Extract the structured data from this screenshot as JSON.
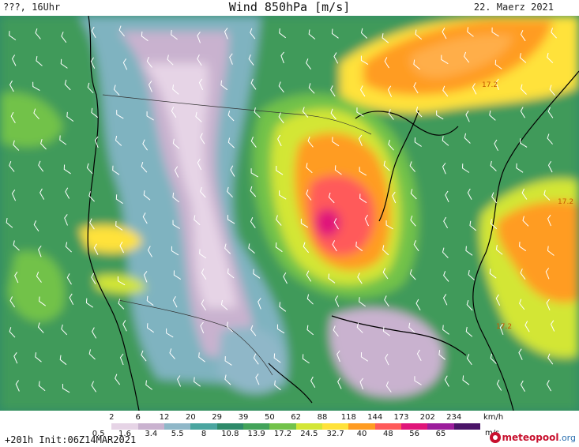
{
  "header": {
    "left": "???, 16Uhr",
    "title": "Wind 850hPa [m/s]",
    "date": "22. Maerz 2021"
  },
  "map": {
    "contour_labels": [
      "17.2",
      "17.2",
      "17.2"
    ]
  },
  "legend": {
    "kmh_ticks": [
      "2",
      "6",
      "12",
      "20",
      "29",
      "39",
      "50",
      "62",
      "88",
      "118",
      "144",
      "173",
      "202",
      "234"
    ],
    "kmh_unit": "km/h",
    "ms_ticks": [
      "0.5",
      "1.6",
      "3.4",
      "5.5",
      "8",
      "10.8",
      "13.9",
      "17.2",
      "24.5",
      "32.7",
      "40",
      "48",
      "56",
      "65"
    ],
    "ms_unit": "m/s",
    "colors": [
      "#ffffff",
      "#e6d4e6",
      "#c9b2cf",
      "#8fb7c8",
      "#4aa5a0",
      "#2e8a6a",
      "#43a35a",
      "#72c24a",
      "#d3e636",
      "#ffe23a",
      "#ff9c22",
      "#ff5a5a",
      "#e0157a",
      "#9c1d9c",
      "#4a1468"
    ]
  },
  "footer": {
    "init": "+201h Init:06Z14MAR2021",
    "brand_main": "meteopool",
    "brand_org": ".org"
  }
}
